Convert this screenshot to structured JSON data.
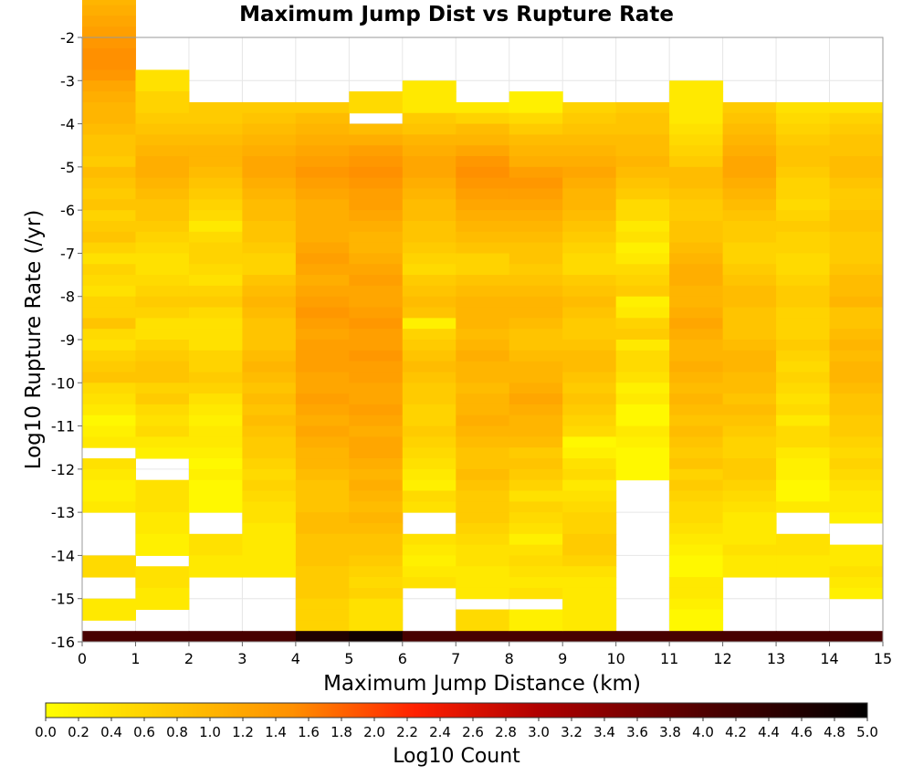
{
  "chart_data": {
    "type": "heatmap",
    "title": "Maximum Jump Dist vs Rupture Rate",
    "xlabel": "Maximum Jump Distance (km)",
    "ylabel": "Log10 Rupture Rate (/yr)",
    "xlim": [
      0,
      15
    ],
    "ylim": [
      -16,
      -2
    ],
    "x_ticks": [
      0,
      1,
      2,
      3,
      4,
      5,
      6,
      7,
      8,
      9,
      10,
      11,
      12,
      13,
      14,
      15
    ],
    "y_ticks": [
      -2,
      -3,
      -4,
      -5,
      -6,
      -7,
      -8,
      -9,
      -10,
      -11,
      -12,
      -13,
      -14,
      -15,
      -16
    ],
    "x_bin_width": 1,
    "y_bin_width": 0.25,
    "y_bin_bottom": -16,
    "colorbar": {
      "label": "Log10 Count",
      "min": 0.0,
      "max": 5.0,
      "ticks": [
        "0.0",
        "0.2",
        "0.4",
        "0.6",
        "0.8",
        "1.0",
        "1.2",
        "1.4",
        "1.6",
        "1.8",
        "2.0",
        "2.2",
        "2.4",
        "2.6",
        "2.8",
        "3.0",
        "3.2",
        "3.4",
        "3.6",
        "3.8",
        "4.0",
        "4.2",
        "4.4",
        "4.6",
        "4.8",
        "5.0"
      ],
      "colors": [
        "#ffff00",
        "#ff8c00",
        "#ff1a00",
        "#9a0000",
        "#000000"
      ]
    },
    "columns_note": "values[i] = log10 count for x-bin i (x from i to i+1), ordered from the top rate bin downward; null = empty",
    "values": [
      [
        0.6,
        0.8,
        1.0,
        1.1,
        1.2,
        1.3,
        1.4,
        1.5,
        1.5,
        1.4,
        1.2,
        1.1,
        1.0,
        1.0,
        0.9,
        0.8,
        0.8,
        0.7,
        0.9,
        0.8,
        0.7,
        0.8,
        0.6,
        0.7,
        0.8,
        0.6,
        0.4,
        0.6,
        0.5,
        0.4,
        0.6,
        0.6,
        0.8,
        0.5,
        0.4,
        0.6,
        0.7,
        0.8,
        0.5,
        0.4,
        0.3,
        0.1,
        0.2,
        0.3,
        null,
        0.4,
        0.3,
        0.2,
        0.2,
        0.3,
        null,
        null,
        null,
        null,
        0.5,
        0.5,
        null,
        null,
        0.3,
        0.3,
        null,
        4.1
      ],
      [
        null,
        null,
        null,
        null,
        null,
        null,
        null,
        null,
        null,
        0.4,
        0.4,
        0.6,
        0.6,
        0.7,
        0.8,
        0.9,
        1.0,
        1.1,
        1.1,
        1.0,
        0.9,
        0.8,
        0.8,
        0.7,
        0.6,
        0.5,
        0.4,
        0.4,
        0.5,
        0.6,
        0.7,
        0.6,
        0.4,
        0.4,
        0.6,
        0.7,
        0.8,
        0.8,
        0.6,
        0.7,
        0.5,
        0.4,
        0.5,
        0.3,
        0.2,
        null,
        null,
        0.4,
        0.4,
        0.4,
        0.3,
        0.3,
        0.2,
        0.2,
        null,
        0.4,
        0.4,
        0.3,
        0.3,
        null,
        null,
        4.1
      ],
      [
        null,
        null,
        null,
        null,
        null,
        null,
        null,
        null,
        null,
        null,
        null,
        null,
        0.7,
        0.7,
        0.8,
        0.9,
        1.0,
        1.0,
        0.9,
        0.8,
        0.7,
        0.6,
        0.5,
        0.3,
        0.5,
        0.6,
        0.6,
        0.5,
        0.4,
        0.6,
        0.7,
        0.5,
        0.4,
        0.4,
        0.4,
        0.6,
        0.6,
        0.7,
        0.6,
        0.4,
        0.3,
        0.2,
        0.3,
        0.3,
        0.2,
        0.1,
        0.2,
        0.1,
        0.1,
        0.1,
        null,
        null,
        0.4,
        0.4,
        0.3,
        0.3,
        null,
        null,
        null,
        null,
        null,
        4.1
      ],
      [
        null,
        null,
        null,
        null,
        null,
        null,
        null,
        null,
        null,
        null,
        null,
        null,
        0.7,
        0.8,
        0.9,
        1.0,
        1.1,
        1.2,
        1.2,
        1.1,
        1.0,
        0.9,
        0.9,
        0.8,
        0.8,
        0.7,
        0.6,
        0.6,
        0.8,
        0.9,
        1.0,
        0.9,
        0.8,
        0.8,
        0.8,
        0.9,
        1.0,
        0.9,
        0.8,
        0.9,
        0.8,
        0.9,
        0.8,
        0.7,
        0.7,
        0.6,
        0.5,
        0.6,
        0.5,
        0.4,
        0.4,
        0.3,
        0.3,
        0.3,
        0.3,
        0.3,
        null,
        null,
        null,
        null,
        null,
        4.1
      ],
      [
        null,
        null,
        null,
        null,
        null,
        null,
        null,
        null,
        null,
        null,
        null,
        null,
        0.7,
        0.9,
        1.0,
        1.1,
        1.2,
        1.3,
        1.4,
        1.3,
        1.2,
        1.1,
        1.1,
        1.1,
        1.1,
        1.2,
        1.3,
        1.2,
        1.1,
        1.2,
        1.3,
        1.4,
        1.3,
        1.2,
        1.3,
        1.3,
        1.3,
        1.2,
        1.2,
        1.3,
        1.2,
        1.1,
        1.2,
        1.1,
        1.0,
        1.0,
        0.9,
        0.8,
        0.8,
        0.8,
        0.9,
        0.9,
        0.8,
        0.8,
        0.8,
        0.7,
        0.7,
        0.7,
        0.6,
        0.6,
        0.6,
        4.6
      ],
      [
        null,
        null,
        null,
        null,
        null,
        null,
        null,
        null,
        null,
        null,
        null,
        0.5,
        0.5,
        null,
        0.9,
        1.1,
        1.3,
        1.4,
        1.5,
        1.4,
        1.3,
        1.3,
        1.2,
        1.1,
        1.0,
        1.0,
        1.1,
        1.2,
        1.3,
        1.2,
        1.2,
        1.3,
        1.4,
        1.3,
        1.3,
        1.4,
        1.3,
        1.3,
        1.2,
        1.2,
        1.3,
        1.2,
        1.1,
        1.2,
        1.2,
        1.1,
        1.0,
        1.1,
        1.0,
        0.9,
        1.0,
        0.9,
        0.8,
        0.8,
        0.7,
        0.6,
        0.5,
        0.6,
        0.4,
        0.4,
        0.4,
        4.8
      ],
      [
        null,
        null,
        null,
        null,
        null,
        null,
        null,
        null,
        null,
        null,
        0.3,
        0.3,
        0.3,
        0.7,
        0.8,
        1.0,
        1.1,
        1.2,
        1.2,
        1.1,
        1.0,
        0.9,
        0.9,
        0.8,
        0.8,
        0.7,
        0.6,
        0.5,
        0.7,
        0.8,
        0.9,
        0.8,
        0.2,
        0.6,
        0.7,
        0.8,
        0.9,
        0.8,
        0.7,
        0.7,
        0.6,
        0.6,
        0.7,
        0.6,
        0.5,
        0.4,
        0.3,
        0.2,
        0.5,
        0.4,
        null,
        null,
        0.4,
        0.3,
        0.2,
        0.3,
        0.4,
        null,
        null,
        null,
        null,
        4.1
      ],
      [
        null,
        null,
        null,
        null,
        null,
        null,
        null,
        null,
        null,
        null,
        null,
        null,
        0.3,
        0.6,
        0.9,
        1.0,
        1.2,
        1.4,
        1.5,
        1.4,
        1.3,
        1.2,
        1.1,
        1.0,
        0.9,
        0.8,
        0.6,
        0.6,
        0.8,
        0.9,
        1.0,
        1.0,
        1.0,
        0.9,
        1.0,
        1.1,
        1.0,
        1.0,
        0.9,
        1.0,
        1.0,
        1.1,
        1.0,
        0.9,
        0.8,
        0.8,
        0.9,
        0.8,
        0.7,
        0.7,
        0.7,
        0.6,
        0.5,
        0.4,
        0.4,
        0.3,
        0.3,
        0.3,
        null,
        0.5,
        0.5,
        4.1
      ],
      [
        null,
        null,
        null,
        null,
        null,
        null,
        null,
        null,
        null,
        null,
        null,
        0.2,
        0.2,
        0.5,
        0.7,
        0.9,
        1.0,
        1.1,
        1.3,
        1.4,
        1.3,
        1.2,
        1.1,
        1.0,
        0.9,
        0.8,
        0.8,
        0.7,
        0.8,
        0.9,
        1.0,
        1.0,
        0.9,
        0.8,
        0.8,
        0.9,
        1.0,
        1.0,
        1.1,
        1.2,
        1.1,
        1.0,
        1.0,
        0.9,
        0.7,
        0.8,
        0.7,
        0.6,
        0.4,
        0.6,
        0.5,
        0.4,
        0.2,
        0.4,
        0.5,
        0.4,
        0.3,
        0.4,
        null,
        0.2,
        0.2,
        4.1
      ],
      [
        null,
        null,
        null,
        null,
        null,
        null,
        null,
        null,
        null,
        null,
        null,
        null,
        0.6,
        0.7,
        0.8,
        0.9,
        1.0,
        1.1,
        1.2,
        1.1,
        1.0,
        1.0,
        0.9,
        0.8,
        0.7,
        0.6,
        0.5,
        0.5,
        0.7,
        0.8,
        0.9,
        0.8,
        0.7,
        0.7,
        0.8,
        0.9,
        0.9,
        0.8,
        0.7,
        0.8,
        0.7,
        0.6,
        0.5,
        0.1,
        0.2,
        0.4,
        0.5,
        0.3,
        0.4,
        0.5,
        0.6,
        0.6,
        0.7,
        0.7,
        0.6,
        0.4,
        0.3,
        0.3,
        0.3,
        0.3,
        0.3,
        4.1
      ],
      [
        null,
        null,
        null,
        null,
        null,
        null,
        null,
        null,
        null,
        null,
        null,
        null,
        0.7,
        0.8,
        0.8,
        0.9,
        0.9,
        1.0,
        0.9,
        0.8,
        0.7,
        0.5,
        0.5,
        0.3,
        0.4,
        0.2,
        0.3,
        0.5,
        0.6,
        0.7,
        0.2,
        0.3,
        0.6,
        0.7,
        0.3,
        0.5,
        0.5,
        0.4,
        0.2,
        0.3,
        0.1,
        0.1,
        0.3,
        0.2,
        0.1,
        0.1,
        0.1,
        null,
        null,
        null,
        null,
        null,
        null,
        null,
        null,
        null,
        null,
        null,
        null,
        null,
        null,
        4.1
      ],
      [
        null,
        null,
        null,
        null,
        null,
        null,
        null,
        null,
        null,
        null,
        0.3,
        0.3,
        0.3,
        0.3,
        0.4,
        0.5,
        0.6,
        0.7,
        0.9,
        0.9,
        0.8,
        0.7,
        0.7,
        0.8,
        0.8,
        0.9,
        1.0,
        1.1,
        1.1,
        1.0,
        1.0,
        1.1,
        1.2,
        1.1,
        1.0,
        1.0,
        1.1,
        1.0,
        0.9,
        1.0,
        0.9,
        0.8,
        0.9,
        0.8,
        0.7,
        0.8,
        0.6,
        0.7,
        0.6,
        0.5,
        0.5,
        0.4,
        0.3,
        0.2,
        0.1,
        0.1,
        0.3,
        0.3,
        0.2,
        0.1,
        0.1,
        4.1
      ],
      [
        null,
        null,
        null,
        null,
        null,
        null,
        null,
        null,
        null,
        null,
        null,
        null,
        0.7,
        0.8,
        0.9,
        1.0,
        1.1,
        1.2,
        1.2,
        1.1,
        1.0,
        0.9,
        0.8,
        0.7,
        0.7,
        0.6,
        0.6,
        0.7,
        0.8,
        0.9,
        0.9,
        0.8,
        0.8,
        0.8,
        0.9,
        1.0,
        1.0,
        0.9,
        0.9,
        0.8,
        0.9,
        0.8,
        0.7,
        0.6,
        0.6,
        0.7,
        0.7,
        0.6,
        0.5,
        0.4,
        0.3,
        0.3,
        0.3,
        0.4,
        0.3,
        0.3,
        null,
        null,
        null,
        null,
        null,
        4.1
      ],
      [
        null,
        null,
        null,
        null,
        null,
        null,
        null,
        null,
        null,
        null,
        null,
        null,
        0.4,
        0.5,
        0.6,
        0.7,
        0.8,
        0.8,
        0.7,
        0.6,
        0.6,
        0.5,
        0.6,
        0.7,
        0.6,
        0.6,
        0.5,
        0.5,
        0.6,
        0.7,
        0.7,
        0.6,
        0.6,
        0.6,
        0.7,
        0.6,
        0.5,
        0.6,
        0.5,
        0.4,
        0.5,
        0.3,
        0.5,
        0.5,
        0.3,
        0.2,
        0.2,
        0.1,
        0.1,
        0.3,
        null,
        null,
        0.4,
        0.4,
        0.3,
        0.3,
        null,
        null,
        null,
        null,
        null,
        4.1
      ],
      [
        null,
        null,
        null,
        null,
        null,
        null,
        null,
        null,
        null,
        null,
        null,
        null,
        0.4,
        0.6,
        0.7,
        0.8,
        0.8,
        0.9,
        0.9,
        0.8,
        0.7,
        0.7,
        0.8,
        0.8,
        0.7,
        0.7,
        0.7,
        0.8,
        0.9,
        0.9,
        1.0,
        0.8,
        0.8,
        0.9,
        1.0,
        0.9,
        1.0,
        1.0,
        0.9,
        0.8,
        0.8,
        0.7,
        0.7,
        0.6,
        0.5,
        0.6,
        0.5,
        0.4,
        0.3,
        0.3,
        0.2,
        null,
        null,
        0.3,
        0.3,
        0.4,
        0.3,
        0.2,
        null,
        null,
        null,
        4.1
      ]
    ]
  }
}
